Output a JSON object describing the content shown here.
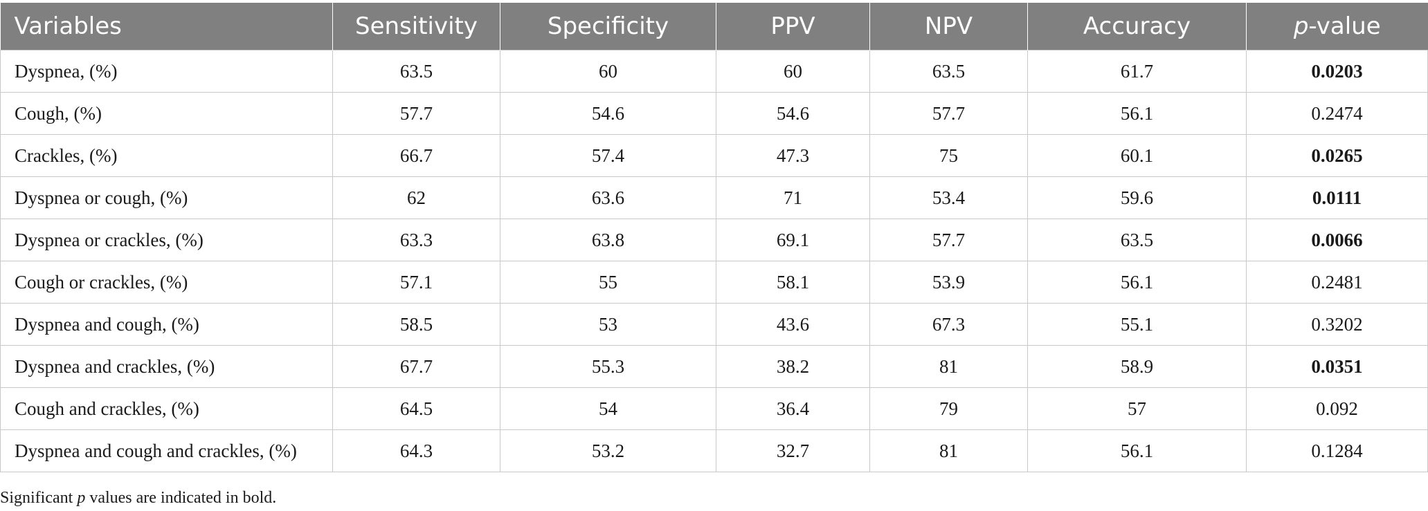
{
  "table": {
    "headers": {
      "variables": "Variables",
      "sensitivity": "Sensitivity",
      "specificity": "Specificity",
      "ppv": "PPV",
      "npv": "NPV",
      "accuracy": "Accuracy",
      "pvalue_italic": "p",
      "pvalue_rest": "-value"
    },
    "rows": [
      {
        "variable": "Dyspnea, (%)",
        "sensitivity": "63.5",
        "specificity": "60",
        "ppv": "60",
        "npv": "63.5",
        "accuracy": "61.7",
        "pvalue": "0.0203",
        "significant": true
      },
      {
        "variable": "Cough, (%)",
        "sensitivity": "57.7",
        "specificity": "54.6",
        "ppv": "54.6",
        "npv": "57.7",
        "accuracy": "56.1",
        "pvalue": "0.2474",
        "significant": false
      },
      {
        "variable": "Crackles, (%)",
        "sensitivity": "66.7",
        "specificity": "57.4",
        "ppv": "47.3",
        "npv": "75",
        "accuracy": "60.1",
        "pvalue": "0.0265",
        "significant": true
      },
      {
        "variable": "Dyspnea or cough, (%)",
        "sensitivity": "62",
        "specificity": "63.6",
        "ppv": "71",
        "npv": "53.4",
        "accuracy": "59.6",
        "pvalue": "0.0111",
        "significant": true
      },
      {
        "variable": "Dyspnea or crackles, (%)",
        "sensitivity": "63.3",
        "specificity": "63.8",
        "ppv": "69.1",
        "npv": "57.7",
        "accuracy": "63.5",
        "pvalue": "0.0066",
        "significant": true
      },
      {
        "variable": "Cough or crackles, (%)",
        "sensitivity": "57.1",
        "specificity": "55",
        "ppv": "58.1",
        "npv": "53.9",
        "accuracy": "56.1",
        "pvalue": "0.2481",
        "significant": false
      },
      {
        "variable": "Dyspnea and cough, (%)",
        "sensitivity": "58.5",
        "specificity": "53",
        "ppv": "43.6",
        "npv": "67.3",
        "accuracy": "55.1",
        "pvalue": "0.3202",
        "significant": false
      },
      {
        "variable": "Dyspnea and crackles, (%)",
        "sensitivity": "67.7",
        "specificity": "55.3",
        "ppv": "38.2",
        "npv": "81",
        "accuracy": "58.9",
        "pvalue": "0.0351",
        "significant": true
      },
      {
        "variable": "Cough and crackles, (%)",
        "sensitivity": "64.5",
        "specificity": "54",
        "ppv": "36.4",
        "npv": "79",
        "accuracy": "57",
        "pvalue": "0.092",
        "significant": false
      },
      {
        "variable": "Dyspnea and cough and crackles, (%)",
        "sensitivity": "64.3",
        "specificity": "53.2",
        "ppv": "32.7",
        "npv": "81",
        "accuracy": "56.1",
        "pvalue": "0.1284",
        "significant": false
      }
    ]
  },
  "footnote": {
    "before": "Significant ",
    "italic": "p",
    "after": " values are indicated in bold."
  },
  "colors": {
    "header_bg": "#808080",
    "header_text": "#ffffff",
    "grid": "#c8c8c8"
  }
}
